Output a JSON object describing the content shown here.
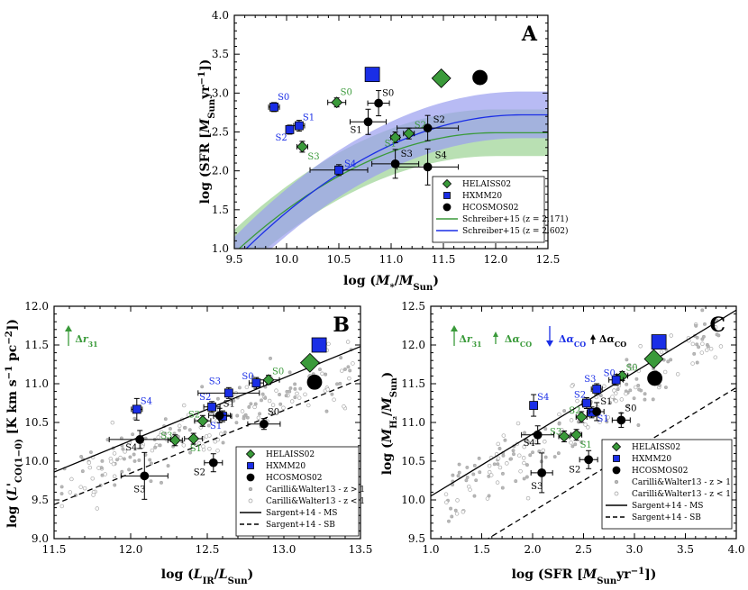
{
  "colors": {
    "green": "#3a9a3a",
    "blue": "#1a2ee6",
    "black": "#000000",
    "grey": "#aaaaaa",
    "green_band": "#a8d8a0",
    "blue_band": "#9a9ef0"
  },
  "chart_data": [
    {
      "id": "A",
      "type": "scatter",
      "panel_label": "A",
      "xlabel": "log (M*/MSun)",
      "ylabel": "log (SFR [MSun yr^-1])",
      "xlim": [
        9.5,
        12.5
      ],
      "ylim": [
        1.0,
        4.0
      ],
      "xticks": [
        "9.5",
        "10.0",
        "10.5",
        "11.0",
        "11.5",
        "12.0",
        "12.5"
      ],
      "yticks": [
        "1.0",
        "1.5",
        "2.0",
        "2.5",
        "3.0",
        "3.5",
        "4.0"
      ],
      "series": [
        {
          "name": "HELAISS02",
          "color": "green",
          "marker": "diamond",
          "points": [
            {
              "label": "S0",
              "x": 10.48,
              "y": 2.88
            },
            {
              "label": "S1",
              "x": 11.04,
              "y": 2.43
            },
            {
              "label": "S2",
              "x": 11.17,
              "y": 2.48
            },
            {
              "label": "S3",
              "x": 10.15,
              "y": 2.31
            }
          ],
          "total": {
            "x": 11.48,
            "y": 3.19
          }
        },
        {
          "name": "HXMM20",
          "color": "blue",
          "marker": "square",
          "points": [
            {
              "label": "S0",
              "x": 9.88,
              "y": 2.82
            },
            {
              "label": "S1",
              "x": 10.12,
              "y": 2.58
            },
            {
              "label": "S2",
              "x": 10.03,
              "y": 2.53
            },
            {
              "label": "S4",
              "x": 10.5,
              "y": 2.01
            }
          ],
          "total": {
            "x": 10.82,
            "y": 3.24
          }
        },
        {
          "name": "HCOSMOS02",
          "color": "black",
          "marker": "circle",
          "points": [
            {
              "label": "S0",
              "x": 10.88,
              "y": 2.87
            },
            {
              "label": "S1",
              "x": 10.78,
              "y": 2.63
            },
            {
              "label": "S2",
              "x": 11.35,
              "y": 2.55
            },
            {
              "label": "S3",
              "x": 11.04,
              "y": 2.09
            },
            {
              "label": "S4",
              "x": 11.35,
              "y": 2.05
            }
          ],
          "total": {
            "x": 11.85,
            "y": 3.2
          }
        }
      ],
      "lines": [
        {
          "name": "Schreiber+15 (z = 2.171)",
          "color": "green"
        },
        {
          "name": "Schreiber+15 (z = 2.602)",
          "color": "blue"
        }
      ],
      "legend": [
        "HELAISS02",
        "HXMM20",
        "HCOSMOS02",
        "Schreiber+15 (z = 2.171)",
        "Schreiber+15 (z = 2.602)"
      ],
      "legend_position": "bottom-right"
    },
    {
      "id": "B",
      "type": "scatter",
      "panel_label": "B",
      "xlabel": "log (LIR/LSun)",
      "ylabel": "log (L'CO(1-0) [K km s^-1 pc^-2])",
      "xlim": [
        11.5,
        13.5
      ],
      "ylim": [
        9.0,
        12.0
      ],
      "xticks": [
        "11.5",
        "12.0",
        "12.5",
        "13.0",
        "13.5"
      ],
      "yticks": [
        "9.0",
        "9.5",
        "10.0",
        "10.5",
        "11.0",
        "11.5",
        "12.0"
      ],
      "annotation": "Δr31",
      "series": [
        {
          "name": "HELAISS02",
          "color": "green",
          "marker": "diamond",
          "points": [
            {
              "label": "S0",
              "x": 12.9,
              "y": 11.05
            },
            {
              "label": "S1",
              "x": 12.41,
              "y": 10.29
            },
            {
              "label": "S2",
              "x": 12.47,
              "y": 10.52
            },
            {
              "label": "S3",
              "x": 12.29,
              "y": 10.27
            }
          ],
          "total": {
            "x": 13.17,
            "y": 11.27
          }
        },
        {
          "name": "HXMM20",
          "color": "blue",
          "marker": "square",
          "points": [
            {
              "label": "S0",
              "x": 12.82,
              "y": 11.01
            },
            {
              "label": "S1",
              "x": 12.6,
              "y": 10.58
            },
            {
              "label": "S2",
              "x": 12.53,
              "y": 10.7
            },
            {
              "label": "S3",
              "x": 12.64,
              "y": 10.88
            },
            {
              "label": "S4",
              "x": 12.04,
              "y": 10.67
            }
          ],
          "total": {
            "x": 13.23,
            "y": 11.5
          }
        },
        {
          "name": "HCOSMOS02",
          "color": "black",
          "marker": "circle",
          "points": [
            {
              "label": "S0",
              "x": 12.87,
              "y": 10.48
            },
            {
              "label": "S1",
              "x": 12.58,
              "y": 10.59
            },
            {
              "label": "S2",
              "x": 12.54,
              "y": 9.98
            },
            {
              "label": "S3",
              "x": 12.09,
              "y": 9.81
            },
            {
              "label": "S4",
              "x": 12.06,
              "y": 10.28
            }
          ],
          "total": {
            "x": 13.2,
            "y": 11.02
          }
        }
      ],
      "relations": [
        {
          "name": "Sargent+14 - MS",
          "style": "solid",
          "x": [
            11.5,
            13.5
          ],
          "y": [
            9.86,
            11.48
          ]
        },
        {
          "name": "Sargent+14 - SB",
          "style": "dashed",
          "x": [
            11.5,
            13.5
          ],
          "y": [
            9.44,
            11.06
          ]
        }
      ],
      "legend": [
        "HELAISS02",
        "HXMM20",
        "HCOSMOS02",
        "Carilli&Walter13 - z > 1",
        "Carilli&Walter13 - z < 1",
        "Sargent+14 - MS",
        "Sargent+14 - SB"
      ],
      "legend_position": "bottom-right"
    },
    {
      "id": "C",
      "type": "scatter",
      "panel_label": "C",
      "xlabel": "log (SFR [MSun yr^-1])",
      "ylabel": "log (MH2/MSun)",
      "xlim": [
        1.0,
        4.0
      ],
      "ylim": [
        9.5,
        12.5
      ],
      "xticks": [
        "1.0",
        "1.5",
        "2.0",
        "2.5",
        "3.0",
        "3.5",
        "4.0"
      ],
      "yticks": [
        "9.5",
        "10.0",
        "10.5",
        "11.0",
        "11.5",
        "12.0",
        "12.5"
      ],
      "annotations": [
        "Δr31",
        "ΔαCO",
        "ΔαCO",
        "ΔαCO"
      ],
      "series": [
        {
          "name": "HELAISS02",
          "color": "green",
          "marker": "diamond",
          "points": [
            {
              "label": "S0",
              "x": 2.88,
              "y": 11.6
            },
            {
              "label": "S1",
              "x": 2.43,
              "y": 10.84
            },
            {
              "label": "S2",
              "x": 2.48,
              "y": 11.07
            },
            {
              "label": "S3",
              "x": 2.31,
              "y": 10.82
            }
          ],
          "total": {
            "x": 3.19,
            "y": 11.82
          }
        },
        {
          "name": "HXMM20",
          "color": "blue",
          "marker": "square",
          "points": [
            {
              "label": "S0",
              "x": 2.82,
              "y": 11.55
            },
            {
              "label": "S1",
              "x": 2.58,
              "y": 11.13
            },
            {
              "label": "S2",
              "x": 2.53,
              "y": 11.25
            },
            {
              "label": "S3",
              "x": 2.63,
              "y": 11.43
            },
            {
              "label": "S4",
              "x": 2.01,
              "y": 11.22
            }
          ],
          "total": {
            "x": 3.24,
            "y": 12.04
          }
        },
        {
          "name": "HCOSMOS02",
          "color": "black",
          "marker": "circle",
          "points": [
            {
              "label": "S0",
              "x": 2.87,
              "y": 11.03
            },
            {
              "label": "S1",
              "x": 2.63,
              "y": 11.14
            },
            {
              "label": "S2",
              "x": 2.55,
              "y": 10.52
            },
            {
              "label": "S3",
              "x": 2.09,
              "y": 10.35
            },
            {
              "label": "S4",
              "x": 2.05,
              "y": 10.84
            }
          ],
          "total": {
            "x": 3.2,
            "y": 11.57
          }
        }
      ],
      "relations": [
        {
          "name": "Sargent+14 - MS",
          "style": "solid",
          "x": [
            1.0,
            4.0
          ],
          "y": [
            10.05,
            12.45
          ]
        },
        {
          "name": "Sargent+14 - SB",
          "style": "dashed",
          "x": [
            1.0,
            4.0
          ],
          "y": [
            9.05,
            11.45
          ]
        }
      ],
      "legend": [
        "HELAISS02",
        "HXMM20",
        "HCOSMOS02",
        "Carilli&Walter13 - z > 1",
        "Carilli&Walter13 - z < 1",
        "Sargent+14 - MS",
        "Sargent+14 - SB"
      ],
      "legend_position": "bottom-right"
    }
  ]
}
